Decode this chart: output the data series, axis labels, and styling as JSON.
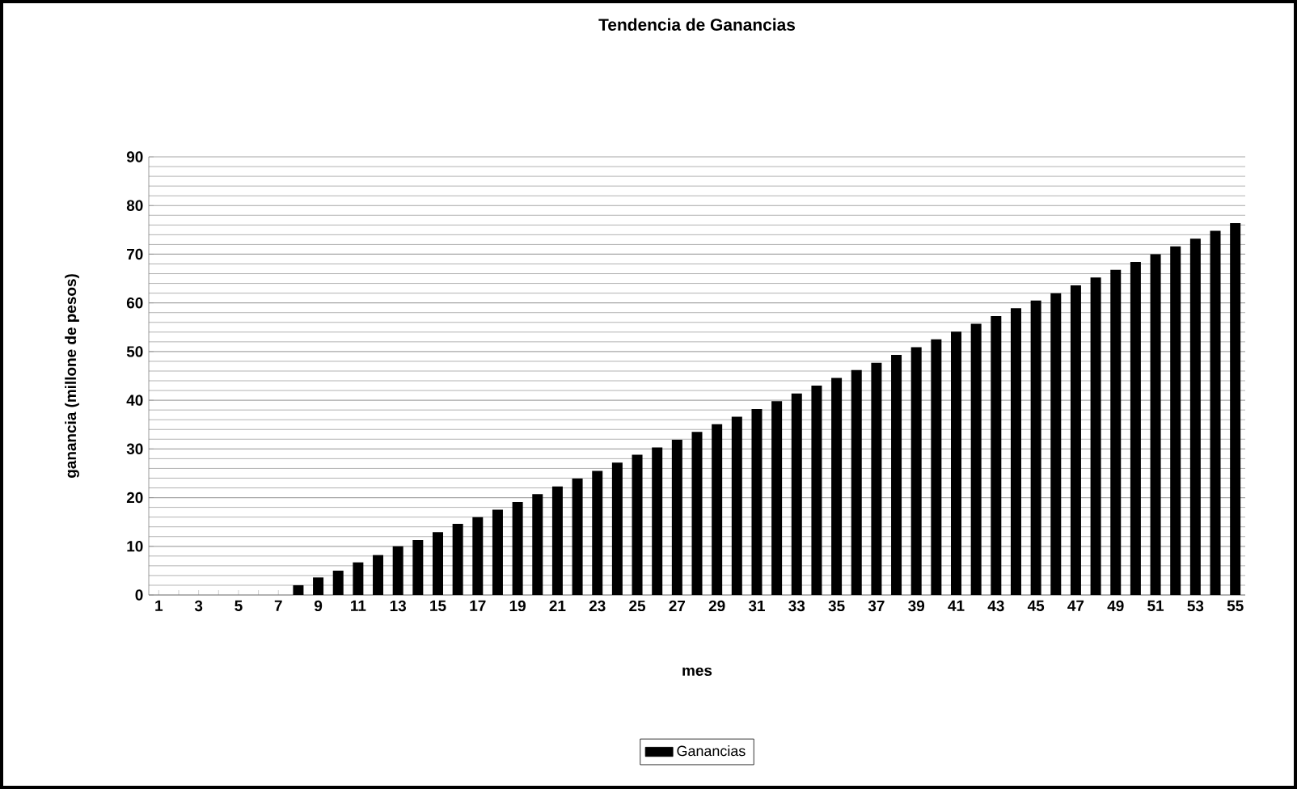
{
  "chart_data": {
    "type": "bar",
    "title": "Tendencia de Ganancias",
    "xlabel": "mes",
    "ylabel": "ganancia (millone de pesos)",
    "categories": [
      "1",
      null,
      "3",
      null,
      "5",
      null,
      "7",
      null,
      "9",
      null,
      "11",
      null,
      "13",
      null,
      "15",
      null,
      "17",
      null,
      "19",
      null,
      "21",
      null,
      "23",
      null,
      "25",
      null,
      "27",
      null,
      "29",
      null,
      "31",
      null,
      "33",
      null,
      "35",
      null,
      "37",
      null,
      "39",
      null,
      "41",
      null,
      "43",
      null,
      "45",
      null,
      "47",
      null,
      "49",
      null,
      "51",
      null,
      "53",
      null,
      "55"
    ],
    "series": [
      {
        "name": "Ganancias",
        "color": "#000000",
        "values": [
          0,
          0,
          0,
          0,
          0,
          0,
          0,
          2,
          3.6,
          5,
          6.7,
          8.2,
          10,
          11.3,
          12.9,
          14.6,
          16,
          17.5,
          19.1,
          20.7,
          22.3,
          23.9,
          25.5,
          27.2,
          28.8,
          30.3,
          31.9,
          33.5,
          35.1,
          36.6,
          38.2,
          39.8,
          41.4,
          43,
          44.6,
          46.2,
          47.7,
          49.3,
          50.9,
          52.5,
          54.1,
          55.7,
          57.3,
          58.9,
          60.5,
          62,
          63.6,
          65.2,
          66.8,
          68.4,
          70,
          71.6,
          73.2,
          74.8,
          76.4
        ]
      }
    ],
    "ylim": [
      0,
      90
    ],
    "yticks": [
      0,
      10,
      20,
      30,
      40,
      50,
      60,
      70,
      80,
      90
    ],
    "grid": "y",
    "legend": "bottom"
  }
}
